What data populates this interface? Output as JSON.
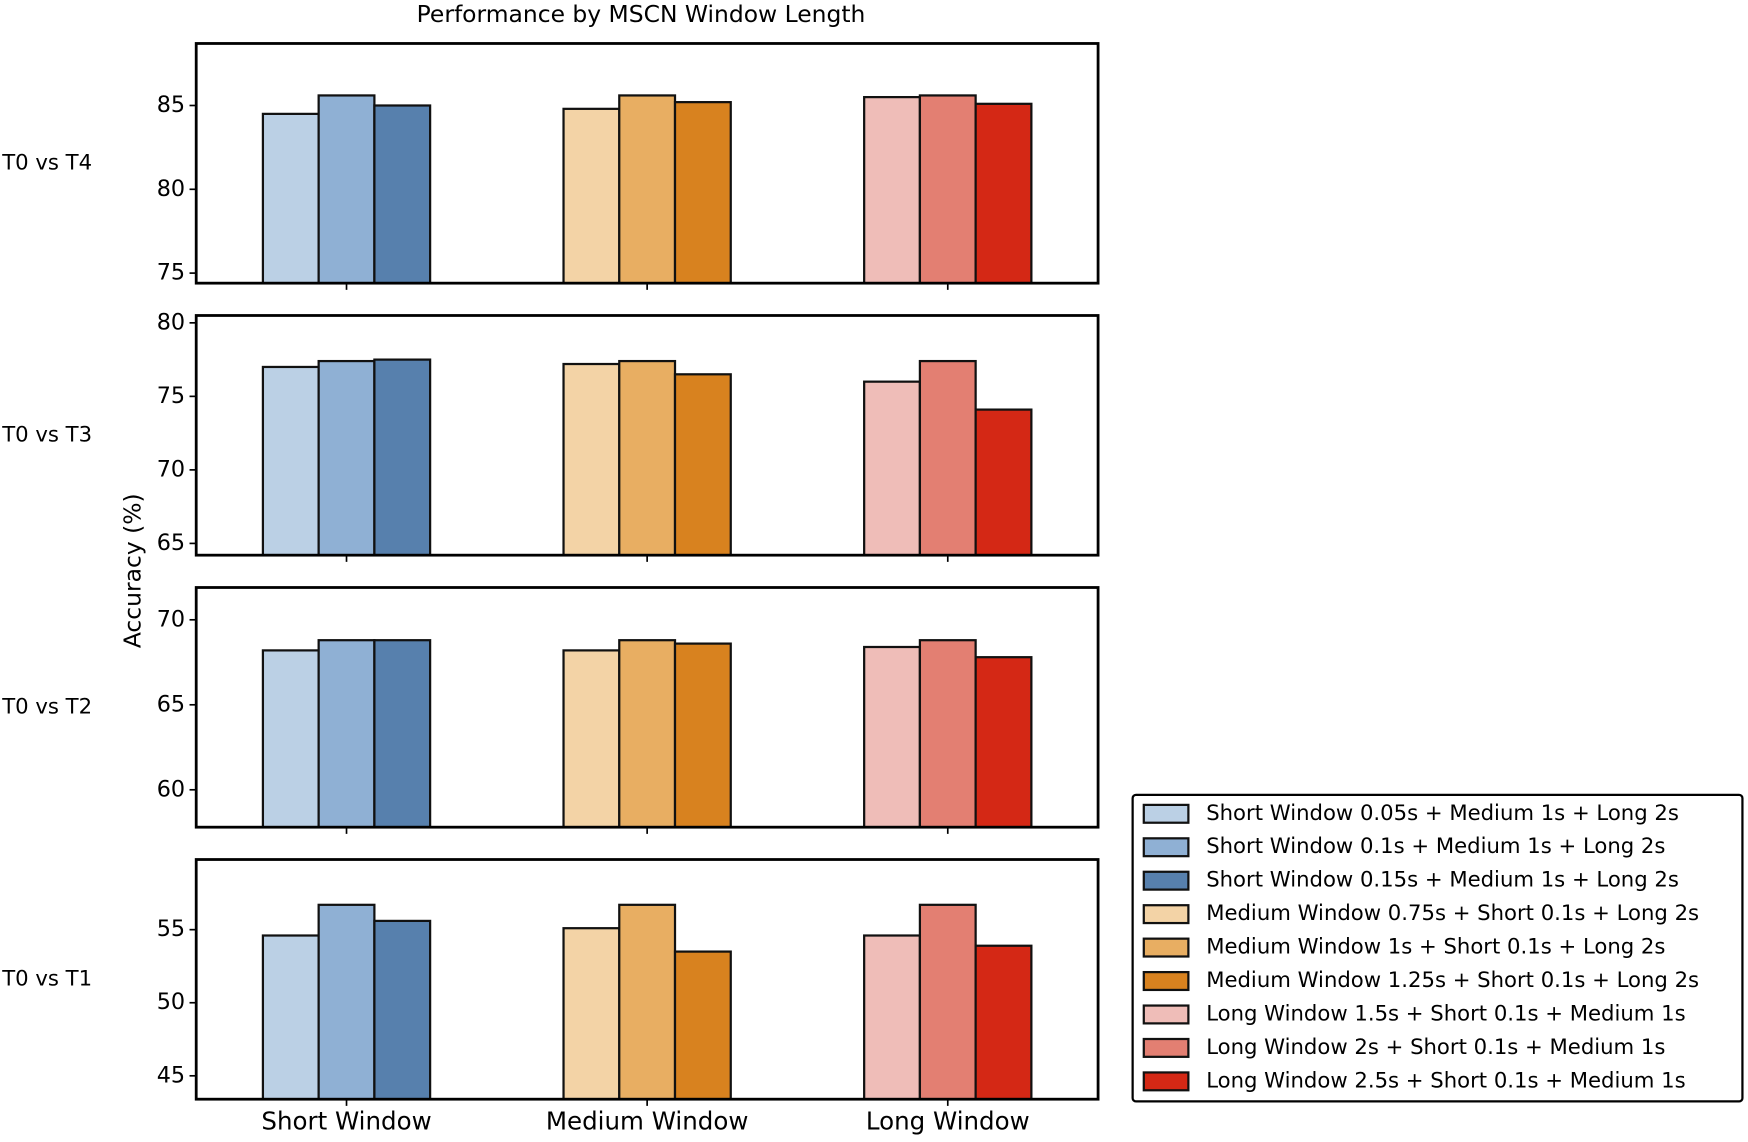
{
  "chart_data": {
    "type": "bar",
    "title": "Performance by MSCN Window Length",
    "y_label": "Accuracy (%)",
    "categories": [
      "Short Window",
      "Medium Window",
      "Long Window"
    ],
    "series": [
      {
        "name": "Short Window 0.05s + Medium 1s + Long 2s",
        "color": "#bbd0e5"
      },
      {
        "name": "Short Window 0.1s + Medium 1s + Long 2s",
        "color": "#8fb0d4"
      },
      {
        "name": "Short Window 0.15s + Medium 1s + Long 2s",
        "color": "#5780ad"
      },
      {
        "name": "Medium Window 0.75s + Short 0.1s + Long 2s",
        "color": "#f3d3a6"
      },
      {
        "name": "Medium Window 1s + Short 0.1s + Long 2s",
        "color": "#e8ae62"
      },
      {
        "name": "Medium Window 1.25s + Short 0.1s + Long 2s",
        "color": "#d8821f"
      },
      {
        "name": "Long Window 1.5s + Short 0.1s + Medium 1s",
        "color": "#efbdb8"
      },
      {
        "name": "Long Window 2s + Short 0.1s + Medium 1s",
        "color": "#e37f72"
      },
      {
        "name": "Long Window 2.5s + Short 0.1s + Medium 1s",
        "color": "#d42815"
      }
    ],
    "legend": "lower right",
    "panels": [
      {
        "label": "T0 vs T4",
        "ylim": [
          74.4,
          88.7
        ],
        "yticks": [
          75,
          80,
          85
        ],
        "values": [
          [
            84.5,
            85.6,
            85.0
          ],
          [
            84.8,
            85.6,
            85.2
          ],
          [
            85.5,
            85.6,
            85.1
          ]
        ]
      },
      {
        "label": "T0 vs T3",
        "ylim": [
          64.2,
          80.5
        ],
        "yticks": [
          65,
          70,
          75,
          80
        ],
        "values": [
          [
            77.0,
            77.4,
            77.5
          ],
          [
            77.2,
            77.4,
            76.5
          ],
          [
            76.0,
            77.4,
            74.1
          ]
        ]
      },
      {
        "label": "T0 vs T2",
        "ylim": [
          57.8,
          71.9
        ],
        "yticks": [
          60,
          65,
          70
        ],
        "values": [
          [
            68.2,
            68.8,
            68.8
          ],
          [
            68.2,
            68.8,
            68.6
          ],
          [
            68.4,
            68.8,
            67.8
          ]
        ]
      },
      {
        "label": "T0 vs T1",
        "ylim": [
          43.4,
          59.8
        ],
        "yticks": [
          45,
          50,
          55
        ],
        "values": [
          [
            54.6,
            56.7,
            55.6
          ],
          [
            55.1,
            56.7,
            53.5
          ],
          [
            54.6,
            56.7,
            53.9
          ]
        ]
      }
    ]
  }
}
